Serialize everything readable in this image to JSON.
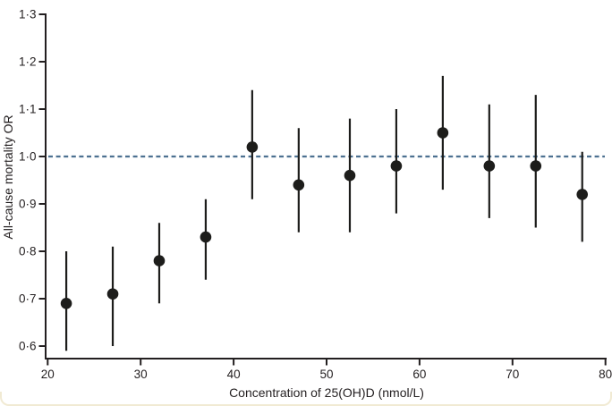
{
  "chart_data": {
    "type": "scatter",
    "xlabel": "Concentration of 25(OH)D (nmol/L)",
    "ylabel": "All-cause mortality OR",
    "xlim": [
      20,
      80
    ],
    "ylim": [
      0.6,
      1.3
    ],
    "grid": false,
    "legend": "none",
    "x_ticks": {
      "values": [
        20,
        30,
        40,
        50,
        60,
        70,
        80
      ],
      "labels": [
        "20",
        "30",
        "40",
        "50",
        "60",
        "70",
        "80"
      ]
    },
    "y_ticks": {
      "values": [
        0.6,
        0.7,
        0.8,
        0.9,
        1.0,
        1.1,
        1.2,
        1.3
      ],
      "labels": [
        "0·6",
        "0·7",
        "0·8",
        "0·9",
        "1·0",
        "1·1",
        "1·2",
        "1·3"
      ]
    },
    "reference_line": {
      "y": 1.0,
      "style": "dashed",
      "color": "#4d7191"
    },
    "points": [
      {
        "x": 22,
        "or": 0.69,
        "ci_low": 0.59,
        "ci_high": 0.8
      },
      {
        "x": 27,
        "or": 0.71,
        "ci_low": 0.6,
        "ci_high": 0.81
      },
      {
        "x": 32,
        "or": 0.78,
        "ci_low": 0.69,
        "ci_high": 0.86
      },
      {
        "x": 37,
        "or": 0.83,
        "ci_low": 0.74,
        "ci_high": 0.91
      },
      {
        "x": 42,
        "or": 1.02,
        "ci_low": 0.91,
        "ci_high": 1.14
      },
      {
        "x": 47,
        "or": 0.94,
        "ci_low": 0.84,
        "ci_high": 1.06
      },
      {
        "x": 52.5,
        "or": 0.96,
        "ci_low": 0.84,
        "ci_high": 1.08
      },
      {
        "x": 57.5,
        "or": 0.98,
        "ci_low": 0.88,
        "ci_high": 1.1
      },
      {
        "x": 62.5,
        "or": 1.05,
        "ci_low": 0.93,
        "ci_high": 1.17
      },
      {
        "x": 67.5,
        "or": 0.98,
        "ci_low": 0.87,
        "ci_high": 1.11
      },
      {
        "x": 72.5,
        "or": 0.98,
        "ci_low": 0.85,
        "ci_high": 1.13
      },
      {
        "x": 77.5,
        "or": 0.92,
        "ci_low": 0.82,
        "ci_high": 1.01
      }
    ],
    "colors": {
      "marker": "#1d1d1b",
      "axis": "#231f20",
      "reference": "#4d7191",
      "frame_border": "#f1ead3"
    }
  }
}
